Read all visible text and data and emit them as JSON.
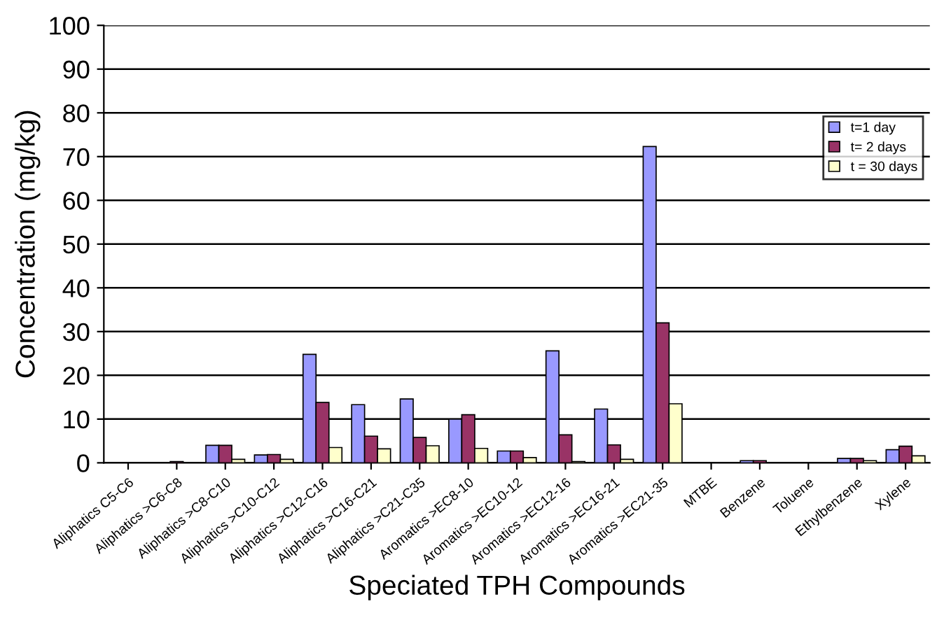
{
  "chart_data": {
    "type": "bar",
    "xlabel": "Speciated TPH Compounds",
    "ylabel": "Concentration (mg/kg)",
    "categories": [
      "Aliphatics C5-C6",
      "Aliphatics >C6-C8",
      "Aliphatics >C8-C10",
      "Aliphatics >C10-C12",
      "Aliphatics >C12-C16",
      "Aliphatics >C16-C21",
      "Aliphatics >C21-C35",
      "Aromatics >EC8-10",
      "Aromatics >EC10-12",
      "Aromatics >EC12-16",
      "Aromatics >EC16-21",
      "Aromatics >EC21-35",
      "MTBE",
      "Benzene",
      "Toluene",
      "Ethylbenzene",
      "Xylene"
    ],
    "series": [
      {
        "name": "t=1 day",
        "color": "#9999ff",
        "values": [
          0,
          null,
          4,
          1.8,
          24.8,
          13.3,
          14.6,
          10,
          2.7,
          25.6,
          12.3,
          72.3,
          0,
          0.5,
          0,
          1,
          3
        ]
      },
      {
        "name": "t= 2 days",
        "color": "#993366",
        "values": [
          0,
          0.3,
          4,
          1.9,
          13.8,
          6.1,
          5.8,
          11,
          2.7,
          6.4,
          4.1,
          32,
          0,
          0.5,
          0,
          1,
          3.8
        ]
      },
      {
        "name": "t = 30 days",
        "color": "#ffffcc",
        "values": [
          0,
          0,
          0.8,
          0.8,
          3.5,
          3.2,
          3.9,
          3.3,
          1.2,
          0.3,
          0.8,
          13.5,
          0,
          null,
          0,
          0.5,
          1.6
        ]
      }
    ],
    "ylim": [
      0,
      100
    ],
    "yticks": [
      0,
      10,
      20,
      30,
      40,
      50,
      60,
      70,
      80,
      90,
      100
    ],
    "grid": "y",
    "legend": "right"
  }
}
